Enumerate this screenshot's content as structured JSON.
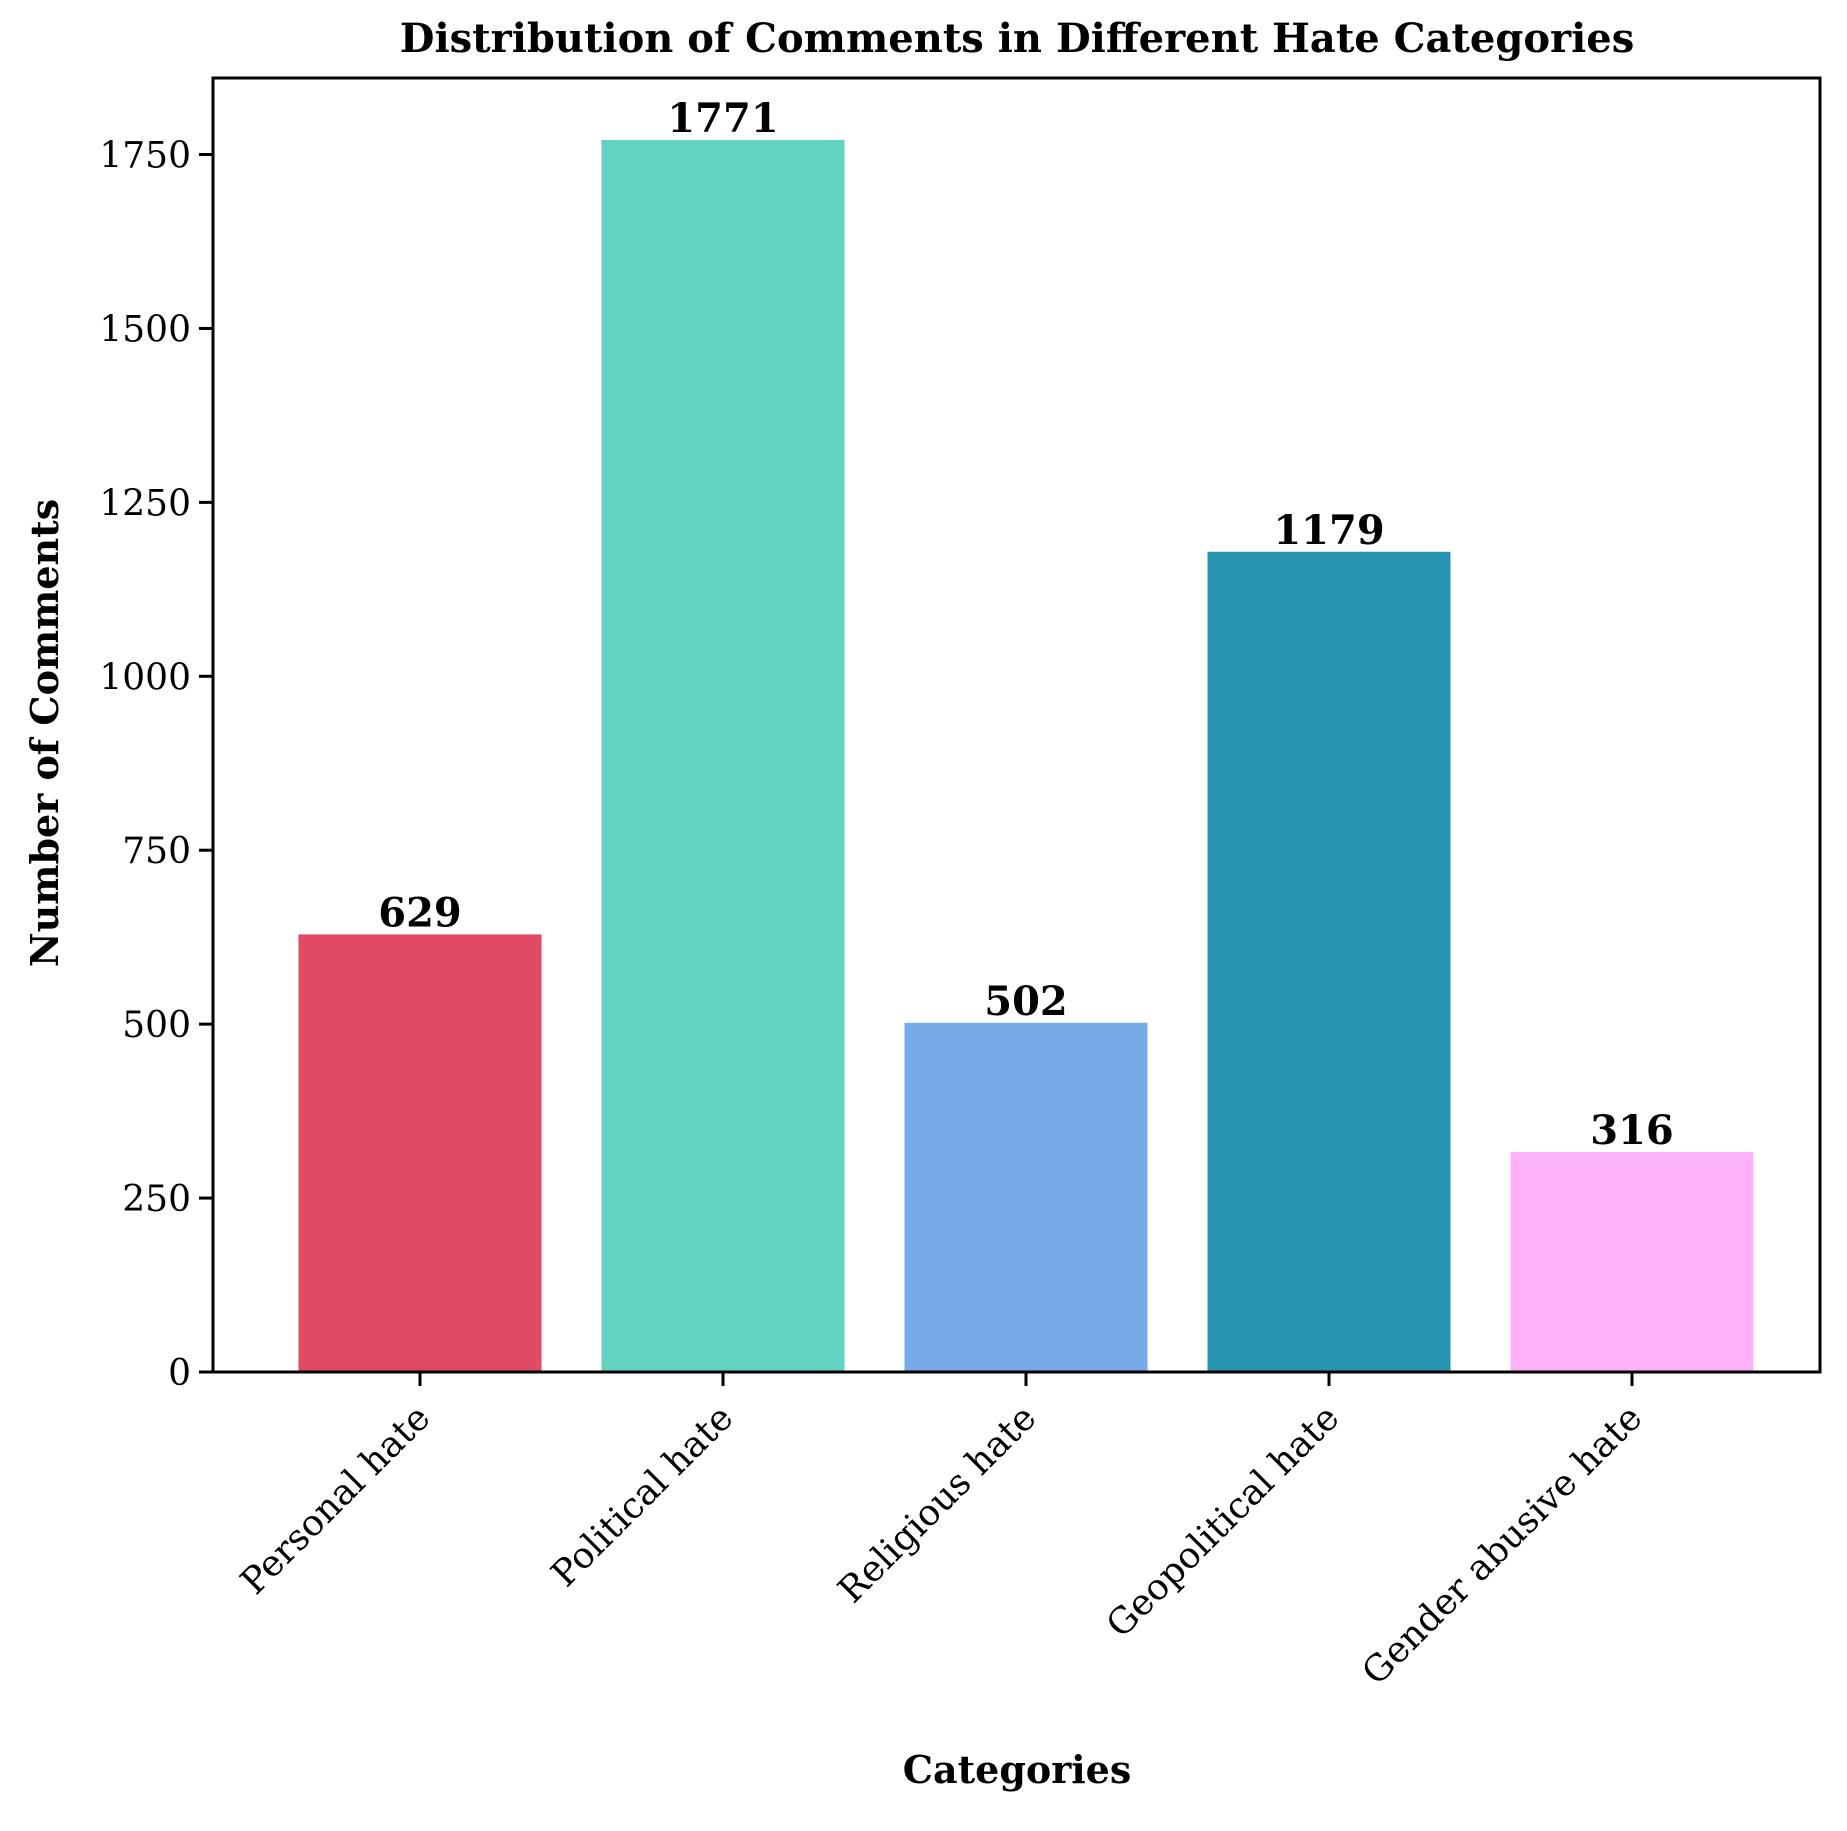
{
  "chart_data": {
    "type": "bar",
    "title": "Distribution of Comments in Different Hate Categories",
    "xlabel": "Categories",
    "ylabel": "Number of Comments",
    "categories": [
      "Personal hate",
      "Political hate",
      "Religious hate",
      "Geopolitical hate",
      "Gender abusive hate"
    ],
    "values": [
      629,
      1771,
      502,
      1179,
      316
    ],
    "colors": [
      "#e04a62",
      "#62d2c2",
      "#76abe8",
      "#2795b0",
      "#fdb1f8"
    ],
    "yticks": [
      0,
      250,
      500,
      750,
      1000,
      1250,
      1500,
      1750
    ],
    "ylim": [
      0,
      1860
    ],
    "grid": false,
    "legend": "none"
  }
}
